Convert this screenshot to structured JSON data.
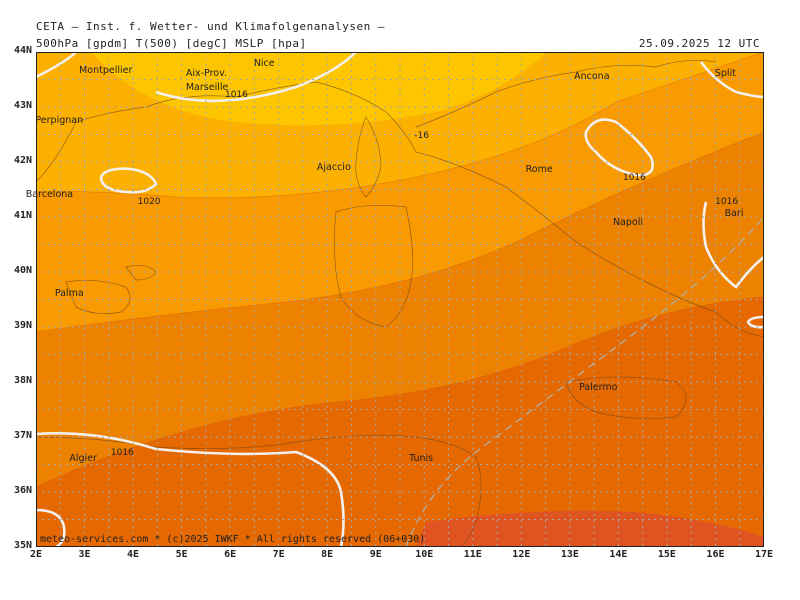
{
  "header": {
    "title": "CETA — Inst. f. Wetter- und Klimafolgenanalysen —",
    "params": "500hPa [gpdm] T(500) [degC] MSLP [hpa]",
    "datetime": "25.09.2025 12 UTC"
  },
  "axes": {
    "lat_labels": [
      "44N",
      "43N",
      "42N",
      "41N",
      "40N",
      "39N",
      "38N",
      "37N",
      "36N",
      "35N"
    ],
    "lon_labels": [
      "2E",
      "3E",
      "4E",
      "5E",
      "6E",
      "7E",
      "8E",
      "9E",
      "10E",
      "11E",
      "12E",
      "13E",
      "14E",
      "15E",
      "16E",
      "17E"
    ]
  },
  "cities": [
    {
      "name": "Montpellier",
      "lon": 3.3,
      "lat": 43.65
    },
    {
      "name": "Nice",
      "lon": 6.9,
      "lat": 43.78
    },
    {
      "name": "Aix-Prov.",
      "lon": 5.5,
      "lat": 43.6
    },
    {
      "name": "Marseille",
      "lon": 5.5,
      "lat": 43.35
    },
    {
      "name": "Ancona",
      "lon": 13.5,
      "lat": 43.55
    },
    {
      "name": "Split",
      "lon": 16.4,
      "lat": 43.6
    },
    {
      "name": "Perpignan",
      "lon": 2.4,
      "lat": 42.75
    },
    {
      "name": "Ajaccio",
      "lon": 8.2,
      "lat": 41.9
    },
    {
      "name": "Rome",
      "lon": 12.5,
      "lat": 41.85
    },
    {
      "name": "Barcelona",
      "lon": 2.2,
      "lat": 41.4
    },
    {
      "name": "Napoli",
      "lon": 14.3,
      "lat": 40.9
    },
    {
      "name": "Bari",
      "lon": 16.6,
      "lat": 41.05
    },
    {
      "name": "Palma",
      "lon": 2.8,
      "lat": 39.6
    },
    {
      "name": "Palermo",
      "lon": 13.6,
      "lat": 37.9
    },
    {
      "name": "Algier",
      "lon": 3.1,
      "lat": 36.6
    },
    {
      "name": "Tunis",
      "lon": 10.1,
      "lat": 36.6
    }
  ],
  "isobar_labels": [
    {
      "text": "1016",
      "lon": 6.1,
      "lat": 43.2
    },
    {
      "text": "1020",
      "lon": 4.3,
      "lat": 41.25
    },
    {
      "text": "1016",
      "lon": 14.3,
      "lat": 41.7
    },
    {
      "text": "1016",
      "lon": 16.2,
      "lat": 41.25
    },
    {
      "text": "1016",
      "lon": 3.75,
      "lat": 36.7
    },
    {
      "text": "-16",
      "lon": 10.0,
      "lat": 42.45
    }
  ],
  "temperature_bands_colors": [
    "#fdc600",
    "#fcb000",
    "#f89a00",
    "#ec8200",
    "#e56800",
    "#e05422"
  ],
  "isobar_color": "#f4f0ee",
  "grid": true,
  "footer": "meteo-services.com * (c)2025 IWKF * All rights reserved (06+030)"
}
